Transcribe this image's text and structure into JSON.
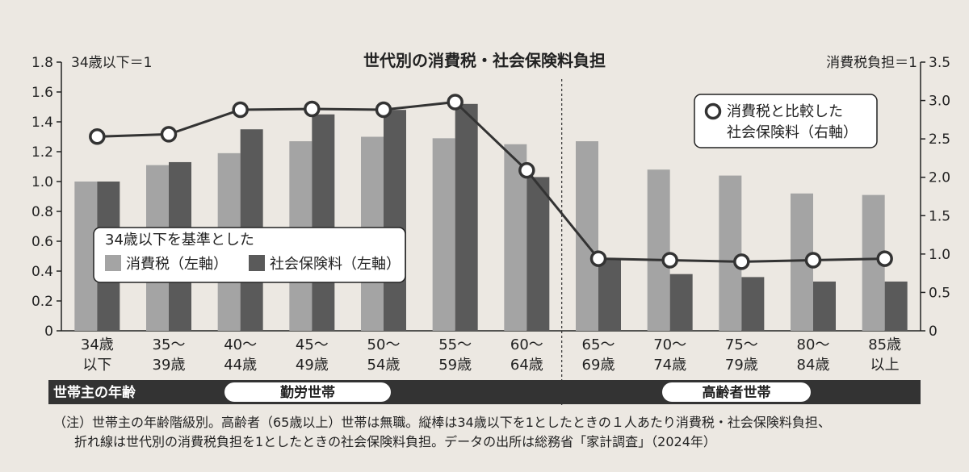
{
  "chart_data": {
    "type": "bar",
    "title": "世代別の消費税・社会保険料負担",
    "left_axis_note": "34歳以下＝1",
    "right_axis_note": "消費税負担＝1",
    "categories": [
      [
        "34歳",
        "以下"
      ],
      [
        "35～",
        "39歳"
      ],
      [
        "40～",
        "44歳"
      ],
      [
        "45～",
        "49歳"
      ],
      [
        "50～",
        "54歳"
      ],
      [
        "55～",
        "59歳"
      ],
      [
        "60～",
        "64歳"
      ],
      [
        "65～",
        "69歳"
      ],
      [
        "70～",
        "74歳"
      ],
      [
        "75～",
        "79歳"
      ],
      [
        "80～",
        "84歳"
      ],
      [
        "85歳",
        "以上"
      ]
    ],
    "ylim_left": [
      0,
      1.8
    ],
    "left_ticks": [
      "0",
      "0.2",
      "0.4",
      "0.6",
      "0.8",
      "1.0",
      "1.2",
      "1.4",
      "1.6",
      "1.8"
    ],
    "ylim_right": [
      0,
      3.5
    ],
    "right_ticks": [
      "0",
      "0.5",
      "1.0",
      "1.5",
      "2.0",
      "2.5",
      "3.0",
      "3.5"
    ],
    "series": [
      {
        "name": "消費税（左軸）",
        "type": "bar",
        "axis": "left",
        "color": "#a4a4a4",
        "values": [
          1.0,
          1.11,
          1.19,
          1.27,
          1.3,
          1.29,
          1.25,
          1.27,
          1.08,
          1.04,
          0.92,
          0.91
        ]
      },
      {
        "name": "社会保険料（左軸）",
        "type": "bar",
        "axis": "left",
        "color": "#5a5a5a",
        "values": [
          1.0,
          1.13,
          1.35,
          1.45,
          1.48,
          1.52,
          1.03,
          0.48,
          0.38,
          0.36,
          0.33,
          0.33
        ]
      },
      {
        "name": "消費税と比較した社会保険料（右軸）",
        "type": "line",
        "axis": "right",
        "color": "#333333",
        "values": [
          2.53,
          2.56,
          2.88,
          2.89,
          2.88,
          2.98,
          2.09,
          0.94,
          0.92,
          0.9,
          0.92,
          0.94
        ]
      }
    ],
    "legend_bars_heading": "34歳以下を基準とした",
    "legend_line_lines": [
      "消費税と比較した",
      "社会保険料（右軸）"
    ],
    "band": {
      "label": "世帯主の年齢",
      "groups": [
        "勤労世帯",
        "高齢者世帯"
      ]
    },
    "footnote": [
      "（注）世帯主の年齢階級別。高齢者（65歳以上）世帯は無職。縦棒は34歳以下を1としたときの１人あたり消費税・社会保険料負担、",
      "折れ線は世代別の消費税負担を1としたときの社会保険料負担。データの出所は総務省「家計調査」（2024年）"
    ]
  }
}
